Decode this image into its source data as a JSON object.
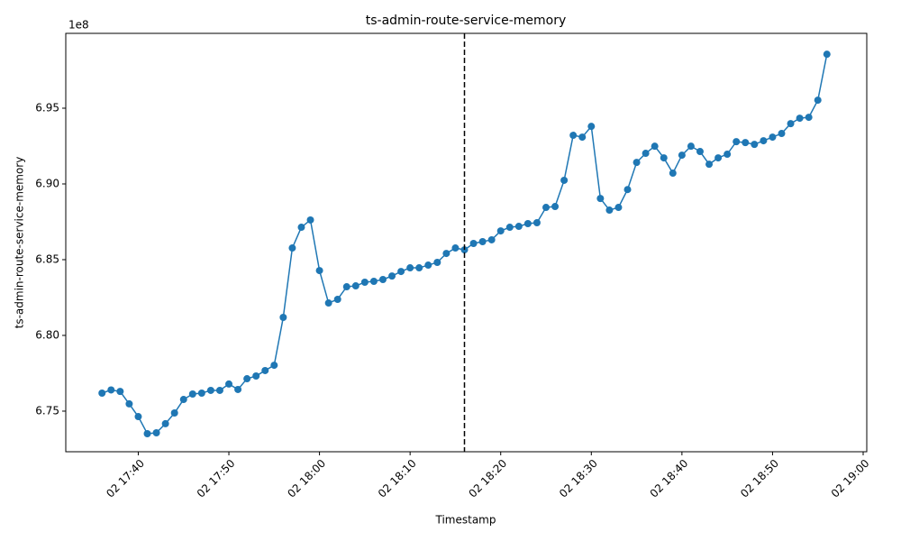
{
  "chart_data": {
    "type": "line",
    "title": "ts-admin-route-service-memory",
    "x_label": "Timestamp",
    "y_label": "ts-admin-route-service-memory",
    "y_offset_label": "1e8",
    "color": "#1f77b4",
    "markers": true,
    "grid": false,
    "vline_x": "02 18:16",
    "vline_color": "#000000",
    "x": [
      "02 17:36",
      "02 17:37",
      "02 17:38",
      "02 17:39",
      "02 17:40",
      "02 17:41",
      "02 17:42",
      "02 17:43",
      "02 17:44",
      "02 17:45",
      "02 17:46",
      "02 17:47",
      "02 17:48",
      "02 17:49",
      "02 17:50",
      "02 17:51",
      "02 17:52",
      "02 17:53",
      "02 17:54",
      "02 17:55",
      "02 17:56",
      "02 17:57",
      "02 17:58",
      "02 17:59",
      "02 18:00",
      "02 18:01",
      "02 18:02",
      "02 18:03",
      "02 18:04",
      "02 18:05",
      "02 18:06",
      "02 18:07",
      "02 18:08",
      "02 18:09",
      "02 18:10",
      "02 18:11",
      "02 18:12",
      "02 18:13",
      "02 18:14",
      "02 18:15",
      "02 18:16",
      "02 18:17",
      "02 18:18",
      "02 18:19",
      "02 18:20",
      "02 18:21",
      "02 18:22",
      "02 18:23",
      "02 18:24",
      "02 18:25",
      "02 18:26",
      "02 18:27",
      "02 18:28",
      "02 18:29",
      "02 18:30",
      "02 18:31",
      "02 18:32",
      "02 18:33",
      "02 18:34",
      "02 18:35",
      "02 18:36",
      "02 18:37",
      "02 18:38",
      "02 18:39",
      "02 18:40",
      "02 18:41",
      "02 18:42",
      "02 18:43",
      "02 18:44",
      "02 18:45",
      "02 18:46",
      "02 18:47",
      "02 18:48",
      "02 18:49",
      "02 18:50",
      "02 18:51",
      "02 18:52",
      "02 18:53",
      "02 18:54",
      "02 18:55",
      "02 18:56"
    ],
    "values": [
      6.7619,
      6.764,
      6.763,
      6.7548,
      6.7464,
      6.7351,
      6.7357,
      6.7417,
      6.7488,
      6.7577,
      6.7613,
      6.7619,
      6.7637,
      6.7637,
      6.7679,
      6.7643,
      6.7714,
      6.7732,
      6.7768,
      6.7803,
      6.8119,
      6.8577,
      6.8714,
      6.8762,
      6.8428,
      6.8214,
      6.8238,
      6.8321,
      6.8327,
      6.8351,
      6.8357,
      6.8369,
      6.8392,
      6.8422,
      6.8446,
      6.8446,
      6.8464,
      6.8482,
      6.8541,
      6.8577,
      6.8565,
      6.8607,
      6.8619,
      6.8631,
      6.869,
      6.8714,
      6.872,
      6.8738,
      6.8744,
      6.8845,
      6.8851,
      6.9024,
      6.9321,
      6.9309,
      6.938,
      6.8904,
      6.8827,
      6.8845,
      6.8963,
      6.9142,
      6.9202,
      6.9249,
      6.9172,
      6.9071,
      6.919,
      6.9249,
      6.9214,
      6.913,
      6.9172,
      6.9196,
      6.9279,
      6.9273,
      6.9261,
      6.9285,
      6.9309,
      6.9333,
      6.9398,
      6.9434,
      6.944,
      6.9553,
      6.9856
    ],
    "xlim": [
      "02 17:32",
      "02 19:00"
    ],
    "xticks": [
      "02 17:40",
      "02 17:50",
      "02 18:00",
      "02 18:10",
      "02 18:20",
      "02 18:30",
      "02 18:40",
      "02 18:50",
      "02 19:00"
    ],
    "ylim": [
      6.7232,
      6.9994
    ],
    "yticks": [
      6.75,
      {
        "value": 6.8,
        "label": "6.80"
      },
      6.85,
      {
        "value": 6.9,
        "label": "6.90"
      },
      6.95
    ]
  }
}
